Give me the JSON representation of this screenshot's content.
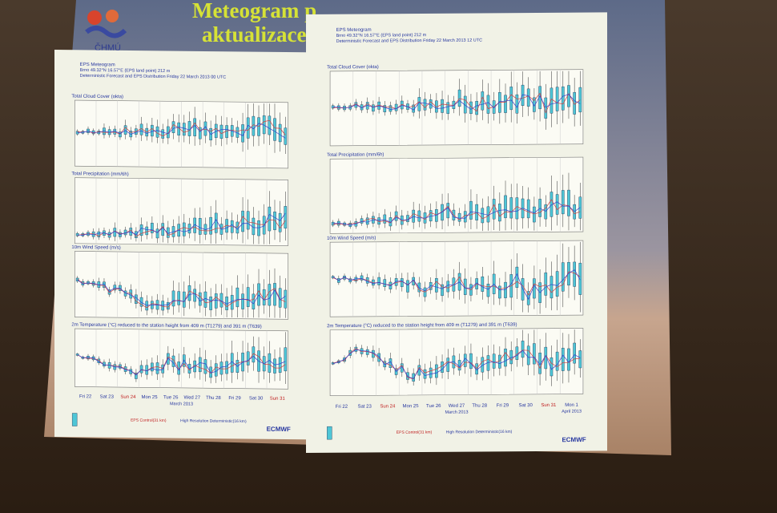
{
  "slide": {
    "title_line1": "Meteogram p",
    "title_line2": "aktualizace výpočtů",
    "logo": "ČHMÚ"
  },
  "panels": [
    {
      "heading": "EPS Meteogram",
      "location": "Brno 49.32°N 16.57°E (EPS land point) 212 m",
      "run": "Deterministic Forecast and EPS Distribution Friday 22 March 2013 00 UTC",
      "sections": [
        "Total Cloud Cover (okta)",
        "Total Precipitation (mm/6h)",
        "10m Wind Speed (m/s)",
        "2m Temperature (°C) reduced to the station height from 409 m (T1279) and 391 m (T639)"
      ],
      "days": [
        "Fri 22",
        "Sat 23",
        "Sun 24",
        "Mon 25",
        "Tue 26",
        "Wed 27",
        "Thu 28",
        "Fri 29",
        "Sat 30",
        "Sun 31"
      ],
      "months": [
        "March 2013"
      ],
      "legend": [
        "EPS Control(31 km)",
        "High Resolution Deterministic(16 km)"
      ],
      "brand": "ECMWF"
    },
    {
      "heading": "EPS Meteogram",
      "location": "Brno 49.32°N 16.57°E (EPS land point) 212 m",
      "run": "Deterministic Forecast and EPS Distribution Friday 22 March 2013 12 UTC",
      "sections": [
        "Total Cloud Cover (okta)",
        "Total Precipitation (mm/6h)",
        "10m Wind Speed (m/s)",
        "2m Temperature (°C) reduced to the station height from 409 m (T1279) and 391 m (T639)"
      ],
      "days": [
        "Fri 22",
        "Sat 23",
        "Sun 24",
        "Mon 25",
        "Tue 26",
        "Wed 27",
        "Thu 28",
        "Fri 29",
        "Sat 30",
        "Sun 31",
        "Mon 1"
      ],
      "months": [
        "March 2013",
        "April 2013"
      ],
      "legend": [
        "EPS Control(31 km)",
        "High Resolution Deterministic(16 km)"
      ],
      "brand": "ECMWF"
    }
  ]
}
